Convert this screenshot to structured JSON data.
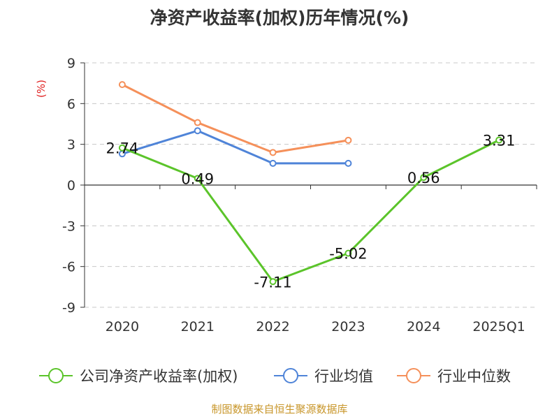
{
  "chart_data": {
    "type": "line",
    "title": "净资产收益率(加权)历年情况(%)",
    "ylabel": "(%)",
    "categories": [
      "2020",
      "2021",
      "2022",
      "2023",
      "2024",
      "2025Q1"
    ],
    "yticks": [
      9,
      6,
      3,
      0,
      -3,
      -6,
      -9
    ],
    "ylim": [
      -9,
      9
    ],
    "grid": true,
    "legend_position": "bottom",
    "series": [
      {
        "name": "公司净资产收益率(加权)",
        "color": "#5bc42a",
        "labeled": true,
        "values": [
          2.74,
          0.49,
          -7.11,
          -5.02,
          0.56,
          3.31
        ],
        "labels": [
          "2.74",
          "0.49",
          "-7.11",
          "-5.02",
          "0.56",
          "3.31"
        ]
      },
      {
        "name": "行业均值",
        "color": "#4f84d8",
        "labeled": false,
        "values": [
          2.3,
          4.0,
          1.6,
          1.6,
          null,
          null
        ]
      },
      {
        "name": "行业中位数",
        "color": "#f5905a",
        "labeled": false,
        "values": [
          7.4,
          4.6,
          2.4,
          3.3,
          null,
          null
        ]
      }
    ],
    "source": "制图数据来自恒生聚源数据库"
  }
}
